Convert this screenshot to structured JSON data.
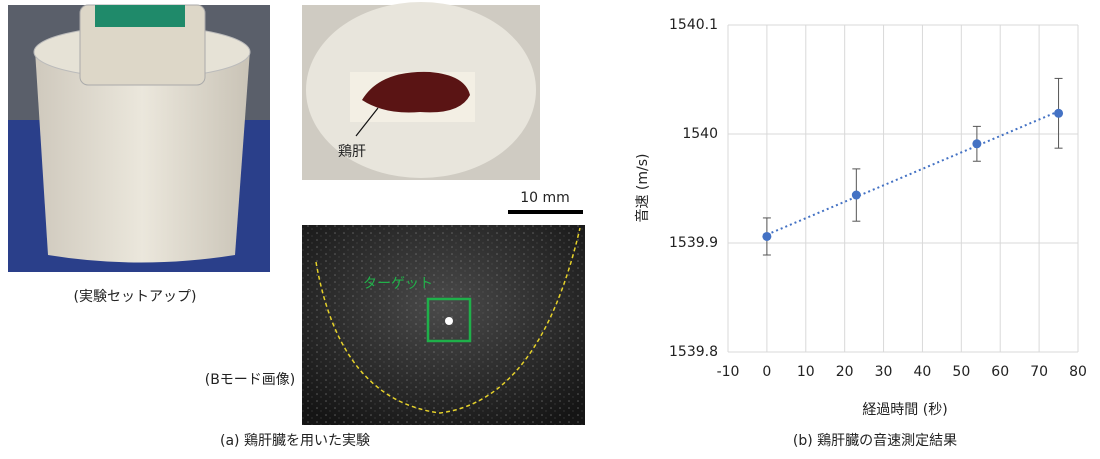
{
  "figure_a": {
    "setup_label": "(実験セットアップ)",
    "liver_label": "鶏肝",
    "scale_label": "10 mm",
    "target_label": "ターゲット",
    "bmode_label": "(Bモード画像)",
    "caption": "(a) 鶏肝臓を用いた実験"
  },
  "chart_data": {
    "type": "scatter",
    "caption": "(b) 鶏肝臓の音速測定結果",
    "x_label": "経過時間 (秒)",
    "y_label": "音速 (m/s)",
    "x": [
      0,
      23,
      54,
      75
    ],
    "values": [
      1539.906,
      1539.944,
      1539.991,
      1540.019
    ],
    "errors": [
      0.017,
      0.024,
      0.016,
      0.032
    ],
    "color": "#4472c4",
    "trendline": true,
    "grid": true,
    "xlim": [
      -10,
      80
    ],
    "xticks": [
      -10,
      0,
      10,
      20,
      30,
      40,
      50,
      60,
      70,
      80
    ],
    "ylim": [
      1539.8,
      1540.1
    ],
    "yticks": [
      1539.8,
      1539.9,
      1540,
      1540.1
    ]
  }
}
